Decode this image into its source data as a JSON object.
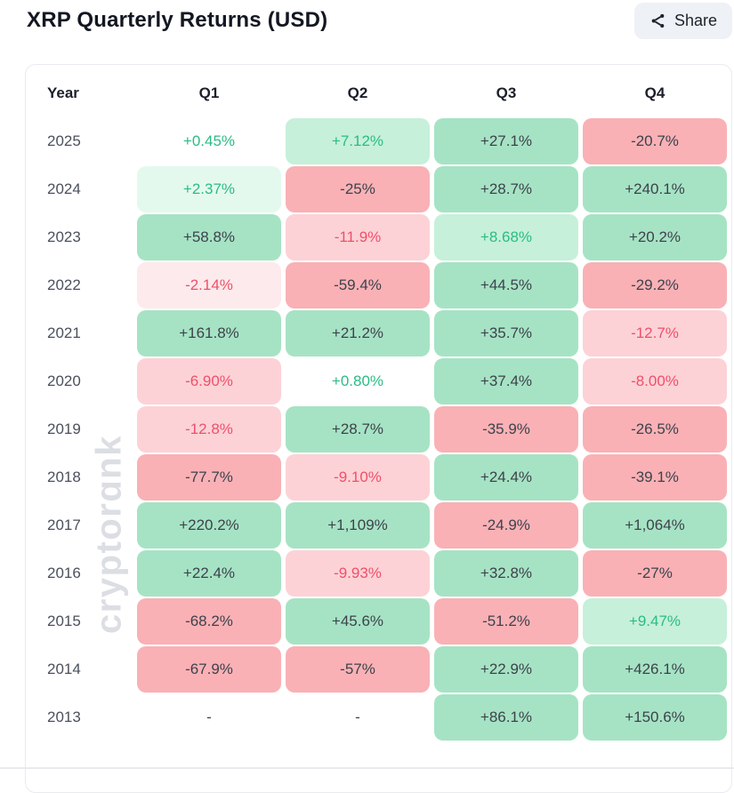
{
  "title": "XRP Quarterly Returns (USD)",
  "share": {
    "label": "Share",
    "icon": "share-nodes-icon"
  },
  "watermark": "cryptorɑnk",
  "palette": {
    "bg": {
      "none": "transparent",
      "green": "#a6e3c4",
      "green_light": "#c6f0da",
      "green_faint": "#e4f9ee",
      "red": "#f9b1b5",
      "red_light": "#fcd2d7",
      "red_faint": "#fdeaec"
    },
    "fg": {
      "dark": "#3d424d",
      "green": "#2abc84",
      "red": "#ef5068"
    },
    "accent_green_text": "#2abc84",
    "accent_red_text": "#ef5068"
  },
  "table": {
    "headers": [
      "Year",
      "Q1",
      "Q2",
      "Q3",
      "Q4"
    ],
    "rows": [
      {
        "year": "2025",
        "cells": [
          {
            "v": "+0.45%",
            "bg": "none",
            "fg": "green"
          },
          {
            "v": "+7.12%",
            "bg": "green_light",
            "fg": "green"
          },
          {
            "v": "+27.1%",
            "bg": "green",
            "fg": "dark"
          },
          {
            "v": "-20.7%",
            "bg": "red",
            "fg": "dark"
          }
        ]
      },
      {
        "year": "2024",
        "cells": [
          {
            "v": "+2.37%",
            "bg": "green_faint",
            "fg": "green"
          },
          {
            "v": "-25%",
            "bg": "red",
            "fg": "dark"
          },
          {
            "v": "+28.7%",
            "bg": "green",
            "fg": "dark"
          },
          {
            "v": "+240.1%",
            "bg": "green",
            "fg": "dark"
          }
        ]
      },
      {
        "year": "2023",
        "cells": [
          {
            "v": "+58.8%",
            "bg": "green",
            "fg": "dark"
          },
          {
            "v": "-11.9%",
            "bg": "red_light",
            "fg": "red"
          },
          {
            "v": "+8.68%",
            "bg": "green_light",
            "fg": "green"
          },
          {
            "v": "+20.2%",
            "bg": "green",
            "fg": "dark"
          }
        ]
      },
      {
        "year": "2022",
        "cells": [
          {
            "v": "-2.14%",
            "bg": "red_faint",
            "fg": "red"
          },
          {
            "v": "-59.4%",
            "bg": "red",
            "fg": "dark"
          },
          {
            "v": "+44.5%",
            "bg": "green",
            "fg": "dark"
          },
          {
            "v": "-29.2%",
            "bg": "red",
            "fg": "dark"
          }
        ]
      },
      {
        "year": "2021",
        "cells": [
          {
            "v": "+161.8%",
            "bg": "green",
            "fg": "dark"
          },
          {
            "v": "+21.2%",
            "bg": "green",
            "fg": "dark"
          },
          {
            "v": "+35.7%",
            "bg": "green",
            "fg": "dark"
          },
          {
            "v": "-12.7%",
            "bg": "red_light",
            "fg": "red"
          }
        ]
      },
      {
        "year": "2020",
        "cells": [
          {
            "v": "-6.90%",
            "bg": "red_light",
            "fg": "red"
          },
          {
            "v": "+0.80%",
            "bg": "none",
            "fg": "green"
          },
          {
            "v": "+37.4%",
            "bg": "green",
            "fg": "dark"
          },
          {
            "v": "-8.00%",
            "bg": "red_light",
            "fg": "red"
          }
        ]
      },
      {
        "year": "2019",
        "cells": [
          {
            "v": "-12.8%",
            "bg": "red_light",
            "fg": "red"
          },
          {
            "v": "+28.7%",
            "bg": "green",
            "fg": "dark"
          },
          {
            "v": "-35.9%",
            "bg": "red",
            "fg": "dark"
          },
          {
            "v": "-26.5%",
            "bg": "red",
            "fg": "dark"
          }
        ]
      },
      {
        "year": "2018",
        "cells": [
          {
            "v": "-77.7%",
            "bg": "red",
            "fg": "dark"
          },
          {
            "v": "-9.10%",
            "bg": "red_light",
            "fg": "red"
          },
          {
            "v": "+24.4%",
            "bg": "green",
            "fg": "dark"
          },
          {
            "v": "-39.1%",
            "bg": "red",
            "fg": "dark"
          }
        ]
      },
      {
        "year": "2017",
        "cells": [
          {
            "v": "+220.2%",
            "bg": "green",
            "fg": "dark"
          },
          {
            "v": "+1,109%",
            "bg": "green",
            "fg": "dark"
          },
          {
            "v": "-24.9%",
            "bg": "red",
            "fg": "dark"
          },
          {
            "v": "+1,064%",
            "bg": "green",
            "fg": "dark"
          }
        ]
      },
      {
        "year": "2016",
        "cells": [
          {
            "v": "+22.4%",
            "bg": "green",
            "fg": "dark"
          },
          {
            "v": "-9.93%",
            "bg": "red_light",
            "fg": "red"
          },
          {
            "v": "+32.8%",
            "bg": "green",
            "fg": "dark"
          },
          {
            "v": "-27%",
            "bg": "red",
            "fg": "dark"
          }
        ]
      },
      {
        "year": "2015",
        "cells": [
          {
            "v": "-68.2%",
            "bg": "red",
            "fg": "dark"
          },
          {
            "v": "+45.6%",
            "bg": "green",
            "fg": "dark"
          },
          {
            "v": "-51.2%",
            "bg": "red",
            "fg": "dark"
          },
          {
            "v": "+9.47%",
            "bg": "green_light",
            "fg": "green"
          }
        ]
      },
      {
        "year": "2014",
        "cells": [
          {
            "v": "-67.9%",
            "bg": "red",
            "fg": "dark"
          },
          {
            "v": "-57%",
            "bg": "red",
            "fg": "dark"
          },
          {
            "v": "+22.9%",
            "bg": "green",
            "fg": "dark"
          },
          {
            "v": "+426.1%",
            "bg": "green",
            "fg": "dark"
          }
        ]
      },
      {
        "year": "2013",
        "cells": [
          {
            "v": "-",
            "bg": "none",
            "fg": "dark"
          },
          {
            "v": "-",
            "bg": "none",
            "fg": "dark"
          },
          {
            "v": "+86.1%",
            "bg": "green",
            "fg": "dark"
          },
          {
            "v": "+150.6%",
            "bg": "green",
            "fg": "dark"
          }
        ]
      }
    ]
  },
  "chart_data": {
    "type": "heatmap",
    "title": "XRP Quarterly Returns (USD)",
    "unit": "percent",
    "columns": [
      "Q1",
      "Q2",
      "Q3",
      "Q4"
    ],
    "rows": [
      "2025",
      "2024",
      "2023",
      "2022",
      "2021",
      "2020",
      "2019",
      "2018",
      "2017",
      "2016",
      "2015",
      "2014",
      "2013"
    ],
    "values": [
      [
        0.45,
        7.12,
        27.1,
        -20.7
      ],
      [
        2.37,
        -25,
        28.7,
        240.1
      ],
      [
        58.8,
        -11.9,
        8.68,
        20.2
      ],
      [
        -2.14,
        -59.4,
        44.5,
        -29.2
      ],
      [
        161.8,
        21.2,
        35.7,
        -12.7
      ],
      [
        -6.9,
        0.8,
        37.4,
        -8.0
      ],
      [
        -12.8,
        28.7,
        -35.9,
        -26.5
      ],
      [
        -77.7,
        -9.1,
        24.4,
        -39.1
      ],
      [
        220.2,
        1109,
        -24.9,
        1064
      ],
      [
        22.4,
        -9.93,
        32.8,
        -27
      ],
      [
        -68.2,
        45.6,
        -51.2,
        9.47
      ],
      [
        -67.9,
        -57,
        22.9,
        426.1
      ],
      [
        null,
        null,
        86.1,
        150.6
      ]
    ],
    "legend_position": "none",
    "color_rule": "green = positive, red = negative, intensity scales with magnitude"
  }
}
